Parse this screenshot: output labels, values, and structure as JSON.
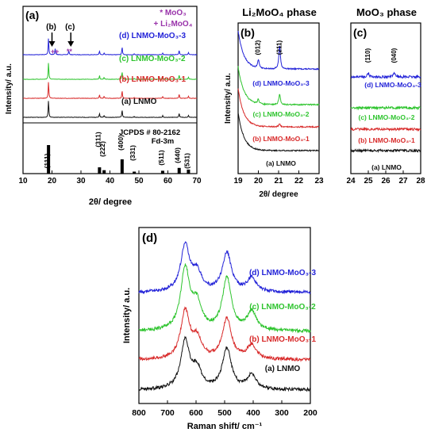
{
  "chart_data": [
    {
      "id": "a",
      "type": "line",
      "panel_label": "(a)",
      "xlabel": "2θ/ degree",
      "ylabel": "Intensity/ a.u.",
      "xlim": [
        10,
        70
      ],
      "xticks": [
        10,
        20,
        30,
        40,
        50,
        60,
        70
      ],
      "legend_note": [
        "* MoO₃",
        "+ Li₂MoO₄"
      ],
      "arrow_labels": [
        "(b)",
        "(c)"
      ],
      "arrows_x": [
        20,
        26.5
      ],
      "series": [
        {
          "name": "(d) LNMO-MoO₃-3",
          "color": "#2323d8",
          "peaks": [
            [
              18.8,
              1.0
            ],
            [
              21.1,
              0.35
            ],
            [
              25.8,
              0.25
            ],
            [
              36.4,
              0.22
            ],
            [
              38.0,
              0.12
            ],
            [
              44.2,
              0.45
            ],
            [
              48.4,
              0.05
            ],
            [
              58.2,
              0.1
            ],
            [
              63.9,
              0.25
            ],
            [
              67.1,
              0.12
            ]
          ],
          "markers": [
            {
              "x": 21.0,
              "sym": "++"
            },
            {
              "x": 26.0,
              "sym": "**"
            }
          ]
        },
        {
          "name": "(c) LNMO-MoO₃-2",
          "color": "#2ec42e",
          "peaks": [
            [
              18.8,
              1.0
            ],
            [
              36.4,
              0.22
            ],
            [
              38.0,
              0.12
            ],
            [
              44.2,
              0.45
            ],
            [
              48.4,
              0.05
            ],
            [
              58.2,
              0.1
            ],
            [
              63.9,
              0.25
            ],
            [
              67.1,
              0.12
            ]
          ]
        },
        {
          "name": "(b) LNMO-MoO₃-1",
          "color": "#d82a2a",
          "peaks": [
            [
              18.8,
              1.0
            ],
            [
              36.4,
              0.22
            ],
            [
              38.0,
              0.12
            ],
            [
              44.2,
              0.45
            ],
            [
              48.4,
              0.05
            ],
            [
              58.2,
              0.1
            ],
            [
              63.9,
              0.25
            ],
            [
              67.1,
              0.12
            ]
          ]
        },
        {
          "name": "(a) LNMO",
          "color": "#111111",
          "peaks": [
            [
              18.8,
              1.0
            ],
            [
              36.4,
              0.22
            ],
            [
              38.0,
              0.12
            ],
            [
              44.2,
              0.45
            ],
            [
              48.4,
              0.05
            ],
            [
              58.2,
              0.1
            ],
            [
              63.9,
              0.25
            ],
            [
              67.1,
              0.12
            ]
          ]
        }
      ],
      "reference": {
        "label_line1": "JCPDS # 80-2162",
        "label_line2": "Fd-3m",
        "sticks": [
          {
            "x": 18.8,
            "h": 1.0,
            "hkl": "(111)"
          },
          {
            "x": 36.4,
            "h": 0.22,
            "hkl": "(311)"
          },
          {
            "x": 38.0,
            "h": 0.12,
            "hkl": "(222)"
          },
          {
            "x": 44.2,
            "h": 0.5,
            "hkl": "(400)"
          },
          {
            "x": 48.4,
            "h": 0.07,
            "hkl": "(331)"
          },
          {
            "x": 58.2,
            "h": 0.1,
            "hkl": "(511)"
          },
          {
            "x": 63.9,
            "h": 0.2,
            "hkl": "(440)"
          },
          {
            "x": 67.1,
            "h": 0.14,
            "hkl": "(531)"
          }
        ]
      }
    },
    {
      "id": "b",
      "type": "line",
      "title": "Li₂MoO₄ phase",
      "panel_label": "(b)",
      "xlabel": "2θ/ degree",
      "ylabel": "Intensity/ a.u.",
      "xlim": [
        19,
        23
      ],
      "xticks": [
        19,
        20,
        21,
        22,
        23
      ],
      "peak_labels": [
        {
          "x": 20.0,
          "text": "(012)"
        },
        {
          "x": 21.05,
          "text": "(211)"
        }
      ],
      "series": [
        {
          "name": "(d) LNMO-MoO₃-3",
          "color": "#2323d8",
          "peaks": [
            [
              20.0,
              0.35
            ],
            [
              21.05,
              1.0
            ]
          ]
        },
        {
          "name": "(c) LNMO-MoO₃-2",
          "color": "#2ec42e",
          "peaks": [
            [
              20.0,
              0.2
            ],
            [
              21.05,
              0.45
            ]
          ]
        },
        {
          "name": "(b) LNMO-MoO₃-1",
          "color": "#d82a2a",
          "peaks": [
            [
              21.05,
              0.12
            ]
          ]
        },
        {
          "name": "(a) LNMO",
          "color": "#111111",
          "peaks": []
        }
      ]
    },
    {
      "id": "c",
      "type": "line",
      "title": "MoO₃ phase",
      "panel_label": "(c)",
      "xlim": [
        24,
        28
      ],
      "xticks": [
        24,
        25,
        26,
        27,
        28
      ],
      "peak_labels": [
        {
          "x": 25.0,
          "text": "(110)"
        },
        {
          "x": 26.5,
          "text": "(040)"
        }
      ],
      "series": [
        {
          "name": "(d) LNMO-MoO₃-3",
          "color": "#2323d8",
          "peaks": [
            [
              25.0,
              0.6
            ],
            [
              26.5,
              0.7
            ]
          ]
        },
        {
          "name": "(c) LNMO-MoO₃-2",
          "color": "#2ec42e",
          "peaks": []
        },
        {
          "name": "(b) LNMO-MoO₃-1",
          "color": "#d82a2a",
          "peaks": []
        },
        {
          "name": "(a) LNMO",
          "color": "#111111",
          "peaks": []
        }
      ]
    },
    {
      "id": "d",
      "type": "line",
      "panel_label": "(d)",
      "xlabel": "Raman shift/ cm⁻¹",
      "ylabel": "Intensity/ a.u.",
      "xlim": [
        800,
        200
      ],
      "xticks": [
        800,
        700,
        600,
        500,
        400,
        300,
        200
      ],
      "series": [
        {
          "name": "(d) LNMO-MoO₃-3",
          "color": "#2323d8",
          "peaks": [
            [
              638,
              1.0
            ],
            [
              597,
              0.4
            ],
            [
              492,
              0.85
            ],
            [
              405,
              0.3
            ]
          ]
        },
        {
          "name": "(c) LNMO-MoO₃-2",
          "color": "#2ec42e",
          "peaks": [
            [
              638,
              1.0
            ],
            [
              597,
              0.4
            ],
            [
              492,
              0.85
            ],
            [
              405,
              0.3
            ]
          ]
        },
        {
          "name": "(b) LNMO-MoO₃-1",
          "color": "#d82a2a",
          "peaks": [
            [
              638,
              1.0
            ],
            [
              597,
              0.4
            ],
            [
              492,
              0.85
            ],
            [
              405,
              0.3
            ]
          ]
        },
        {
          "name": "(a) LNMO",
          "color": "#111111",
          "peaks": [
            [
              638,
              1.0
            ],
            [
              597,
              0.4
            ],
            [
              492,
              0.85
            ],
            [
              405,
              0.3
            ]
          ]
        }
      ]
    }
  ]
}
